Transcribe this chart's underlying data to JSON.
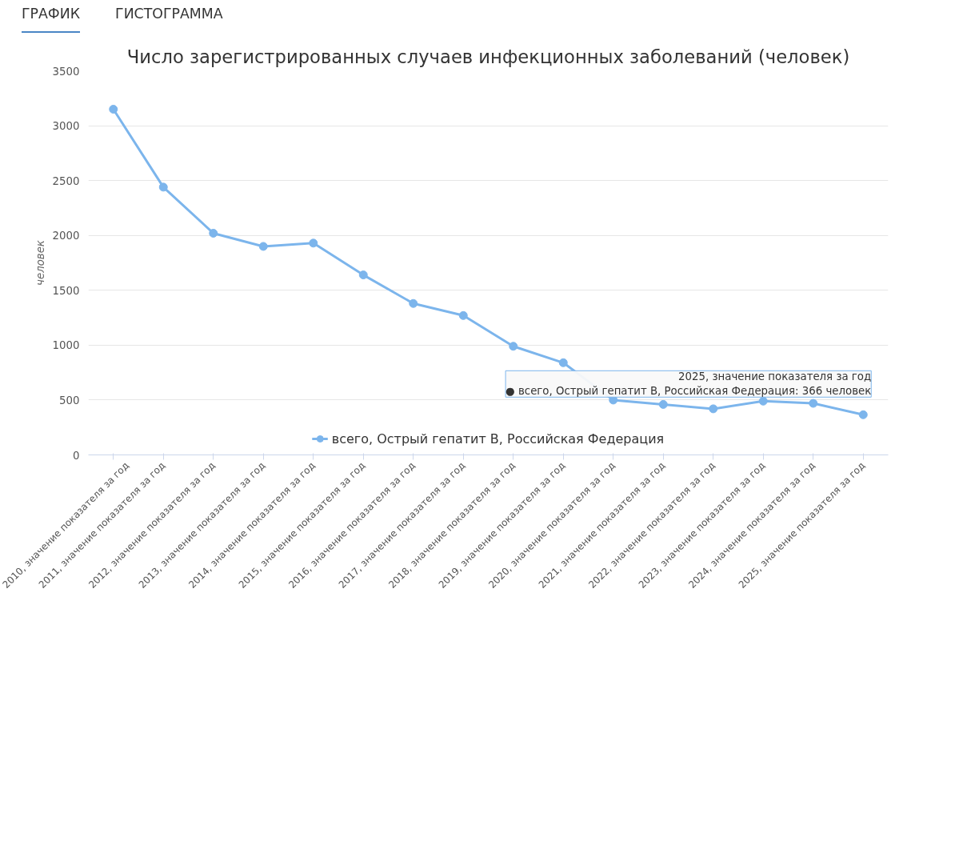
{
  "chart_data": {
    "type": "line",
    "title": "Число зарегистрированных случаев инфекционных заболеваний (человек)",
    "ylabel": "человек",
    "categories": [
      "2010, значение показателя за год",
      "2011, значение показателя за год",
      "2012, значение показателя за год",
      "2013, значение показателя за год",
      "2014, значение показателя за год",
      "2015, значение показателя за год",
      "2016, значение показателя за год",
      "2017, значение показателя за год",
      "2018, значение показателя за год",
      "2019, значение показателя за год",
      "2020, значение показателя за год",
      "2021, значение показателя за год",
      "2022, значение показателя за год",
      "2023, значение показателя за год",
      "2024, значение показателя за год",
      "2025, значение показателя за год"
    ],
    "series": [
      {
        "name": "всего, Острый гепатит B, Российская Федерация",
        "color": "#7cb5ec",
        "values": [
          3150,
          2440,
          2020,
          1900,
          1930,
          1640,
          1380,
          1270,
          990,
          840,
          500,
          460,
          420,
          490,
          470,
          366
        ]
      }
    ],
    "ylim": [
      0,
      3500
    ],
    "yticks": [
      0,
      500,
      1000,
      1500,
      2000,
      2500,
      3000,
      3500
    ],
    "grid": "y",
    "legend": "bottom",
    "marker": "circle",
    "line_style": "solid",
    "annotations": [
      "ГРАФИК",
      "ГИСТОГРАММА",
      {
        "text": "2025, значение показателя за год\n● всего, Острый гепатит B, Российская Федерация: 366 человек",
        "x": "2025, значение показателя за год",
        "y": 366
      }
    ]
  }
}
